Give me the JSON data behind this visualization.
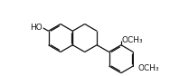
{
  "background": "#ffffff",
  "line_color": "#111111",
  "line_width": 0.9,
  "font_size": 6.5,
  "fig_width": 1.88,
  "fig_height": 0.84,
  "dpi": 100,
  "r": 0.14,
  "bcx": 0.22,
  "bcy": 0.5,
  "ho_label": "HO",
  "o_label": "O",
  "ome_label": "OCH₃"
}
